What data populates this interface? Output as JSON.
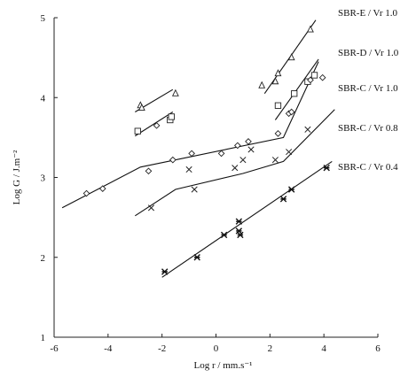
{
  "chart_data": {
    "type": "scatter",
    "title": "",
    "xlabel": "Log r / mm.s⁻¹",
    "ylabel": "Log G / J.m⁻²",
    "xlim": [
      -6,
      6
    ],
    "ylim": [
      1,
      5
    ],
    "xticks": [
      -6,
      -4,
      -2,
      0,
      2,
      4,
      6
    ],
    "yticks": [
      1,
      2,
      3,
      4,
      5
    ],
    "grid": false,
    "legend": "right",
    "series": [
      {
        "name": "SBR-E / Vr 1.0",
        "marker": "triangle",
        "points": [
          {
            "x": -2.8,
            "y": 3.9
          },
          {
            "x": -2.75,
            "y": 3.87
          },
          {
            "x": -1.5,
            "y": 4.05
          },
          {
            "x": 1.7,
            "y": 4.15
          },
          {
            "x": 2.2,
            "y": 4.2
          },
          {
            "x": 2.3,
            "y": 4.3
          },
          {
            "x": 2.8,
            "y": 4.5
          },
          {
            "x": 3.5,
            "y": 4.85
          }
        ],
        "lines": [
          {
            "x": [
              -3.0,
              -1.6
            ],
            "y": [
              3.82,
              4.1
            ]
          },
          {
            "x": [
              1.8,
              3.7
            ],
            "y": [
              4.05,
              4.97
            ]
          }
        ]
      },
      {
        "name": "SBR-D / Vr 1.0",
        "marker": "square",
        "points": [
          {
            "x": -2.9,
            "y": 3.58
          },
          {
            "x": -1.7,
            "y": 3.72
          },
          {
            "x": -1.65,
            "y": 3.76
          },
          {
            "x": 2.3,
            "y": 3.9
          },
          {
            "x": 2.9,
            "y": 4.05
          },
          {
            "x": 3.4,
            "y": 4.2
          },
          {
            "x": 3.65,
            "y": 4.28
          }
        ],
        "lines": [
          {
            "x": [
              -3.0,
              -1.6
            ],
            "y": [
              3.52,
              3.82
            ]
          },
          {
            "x": [
              2.2,
              3.8
            ],
            "y": [
              3.72,
              4.48
            ]
          }
        ]
      },
      {
        "name": "SBR-C / Vr 1.0",
        "marker": "diamond",
        "points": [
          {
            "x": -4.8,
            "y": 2.8
          },
          {
            "x": -4.2,
            "y": 2.86
          },
          {
            "x": -2.5,
            "y": 3.08
          },
          {
            "x": -2.2,
            "y": 3.65
          },
          {
            "x": -1.6,
            "y": 3.22
          },
          {
            "x": -0.9,
            "y": 3.3
          },
          {
            "x": 0.2,
            "y": 3.3
          },
          {
            "x": 0.8,
            "y": 3.4
          },
          {
            "x": 1.2,
            "y": 3.45
          },
          {
            "x": 2.3,
            "y": 3.55
          },
          {
            "x": 2.7,
            "y": 3.8
          },
          {
            "x": 2.8,
            "y": 3.82
          },
          {
            "x": 3.5,
            "y": 4.22
          },
          {
            "x": 3.95,
            "y": 4.25
          }
        ],
        "lines": [
          {
            "x": [
              -5.7,
              -2.8,
              2.5,
              3.8
            ],
            "y": [
              2.62,
              3.13,
              3.5,
              4.45
            ]
          }
        ]
      },
      {
        "name": "SBR-C / Vr 0.8",
        "marker": "x",
        "points": [
          {
            "x": -2.4,
            "y": 2.62
          },
          {
            "x": -1.0,
            "y": 3.1
          },
          {
            "x": -0.8,
            "y": 2.85
          },
          {
            "x": 0.7,
            "y": 3.12
          },
          {
            "x": 1.0,
            "y": 3.22
          },
          {
            "x": 1.3,
            "y": 3.35
          },
          {
            "x": 2.2,
            "y": 3.22
          },
          {
            "x": 2.7,
            "y": 3.32
          },
          {
            "x": 3.4,
            "y": 3.6
          }
        ],
        "lines": [
          {
            "x": [
              -3.0,
              -1.5,
              1.0,
              2.5,
              4.4
            ],
            "y": [
              2.52,
              2.85,
              3.05,
              3.2,
              3.85
            ]
          }
        ]
      },
      {
        "name": "SBR-C / Vr 0.4",
        "marker": "star",
        "points": [
          {
            "x": -1.9,
            "y": 1.82
          },
          {
            "x": -0.7,
            "y": 2.0
          },
          {
            "x": 0.3,
            "y": 2.28
          },
          {
            "x": 0.85,
            "y": 2.45
          },
          {
            "x": 0.85,
            "y": 2.33
          },
          {
            "x": 0.9,
            "y": 2.28
          },
          {
            "x": 2.5,
            "y": 2.73
          },
          {
            "x": 2.8,
            "y": 2.85
          },
          {
            "x": 4.1,
            "y": 3.12
          }
        ],
        "lines": [
          {
            "x": [
              -2.0,
              4.3
            ],
            "y": [
              1.75,
              3.2
            ]
          }
        ]
      }
    ],
    "legend_labels": [
      "SBR-E / Vr 1.0",
      "SBR-D / Vr 1.0",
      "SBR-C / Vr 1.0",
      "SBR-C / Vr 0.8",
      "SBR-C / Vr 0.4"
    ]
  }
}
